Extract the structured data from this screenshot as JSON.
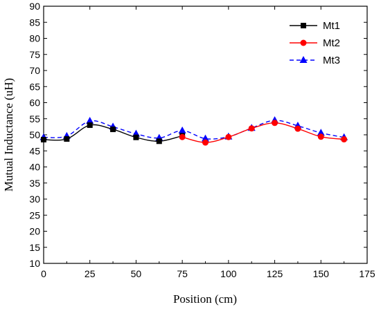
{
  "chart_data": {
    "type": "line",
    "title": "",
    "xlabel": "Position (cm)",
    "ylabel": "Mutual Inductance (uH)",
    "xlim": [
      0,
      175
    ],
    "ylim": [
      10,
      90
    ],
    "xticks": [
      0,
      25,
      50,
      75,
      100,
      125,
      150,
      175
    ],
    "yticks": [
      10,
      15,
      20,
      25,
      30,
      35,
      40,
      45,
      50,
      55,
      60,
      65,
      70,
      75,
      80,
      85,
      90
    ],
    "grid": false,
    "legend_position": "top-right",
    "series": [
      {
        "name": "Mt1",
        "color": "#000000",
        "marker": "square",
        "line_style": "solid",
        "x": [
          0,
          12.5,
          25,
          37.5,
          50,
          62.5,
          75
        ],
        "y": [
          48.5,
          48.7,
          53.0,
          51.7,
          49.2,
          48.0,
          49.7
        ]
      },
      {
        "name": "Mt2",
        "color": "#ff0000",
        "marker": "circle",
        "line_style": "solid",
        "x": [
          75,
          87.5,
          100,
          112.5,
          125,
          137.5,
          150,
          162.5
        ],
        "y": [
          49.3,
          47.6,
          49.3,
          52.0,
          53.7,
          51.9,
          49.4,
          48.6
        ]
      },
      {
        "name": "Mt3",
        "color": "#0000ff",
        "marker": "triangle",
        "line_style": "dashed",
        "x": [
          0,
          12.5,
          25,
          37.5,
          50,
          62.5,
          75,
          87.5,
          100,
          112.5,
          125,
          137.5,
          150,
          162.5
        ],
        "y": [
          49.2,
          49.6,
          54.3,
          52.5,
          50.3,
          49.0,
          51.3,
          48.8,
          49.4,
          52.1,
          54.5,
          52.8,
          50.6,
          49.2
        ]
      }
    ]
  }
}
